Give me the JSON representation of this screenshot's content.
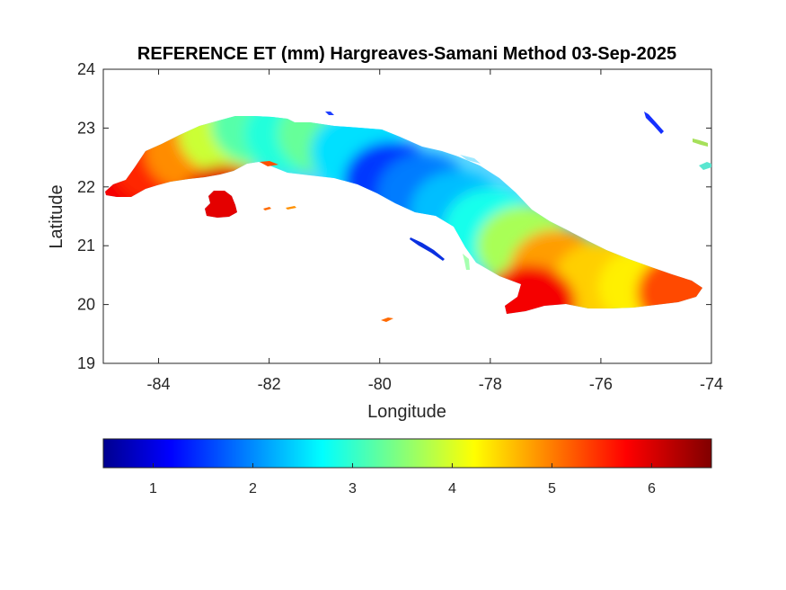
{
  "chart_data": {
    "type": "heatmap",
    "title": "REFERENCE ET (mm) Hargreaves-Samani Method  03-Sep-2025",
    "xlabel": "Longitude",
    "ylabel": "Latitude",
    "xlim": [
      -85,
      -74
    ],
    "ylim": [
      19,
      24
    ],
    "x_ticks": [
      -84,
      -82,
      -80,
      -78,
      -76,
      -74
    ],
    "y_ticks": [
      19,
      20,
      21,
      22,
      23,
      24
    ],
    "colorbar": {
      "colormap": "jet",
      "range": [
        0.5,
        6.6
      ],
      "ticks": [
        1,
        2,
        3,
        4,
        5,
        6
      ],
      "orientation": "horizontal",
      "placement": "below"
    },
    "grid": false,
    "regions": [
      {
        "lon": -84.6,
        "lat": 22.0,
        "value": 5.9
      },
      {
        "lon": -84.0,
        "lat": 22.4,
        "value": 5.6
      },
      {
        "lon": -83.4,
        "lat": 22.6,
        "value": 5.0
      },
      {
        "lon": -82.8,
        "lat": 22.9,
        "value": 4.0
      },
      {
        "lon": -82.2,
        "lat": 23.05,
        "value": 3.3
      },
      {
        "lon": -81.6,
        "lat": 22.9,
        "value": 3.0
      },
      {
        "lon": -81.0,
        "lat": 22.9,
        "value": 3.4
      },
      {
        "lon": -80.4,
        "lat": 22.6,
        "value": 2.6
      },
      {
        "lon": -79.8,
        "lat": 22.1,
        "value": 1.6
      },
      {
        "lon": -79.2,
        "lat": 21.9,
        "value": 2.0
      },
      {
        "lon": -78.6,
        "lat": 21.6,
        "value": 2.4
      },
      {
        "lon": -78.0,
        "lat": 21.3,
        "value": 2.9
      },
      {
        "lon": -77.4,
        "lat": 21.0,
        "value": 3.8
      },
      {
        "lon": -76.8,
        "lat": 20.6,
        "value": 4.9
      },
      {
        "lon": -76.0,
        "lat": 20.4,
        "value": 4.6
      },
      {
        "lon": -75.2,
        "lat": 20.3,
        "value": 4.4
      },
      {
        "lon": -74.5,
        "lat": 20.2,
        "value": 5.4
      },
      {
        "lon": -77.3,
        "lat": 20.0,
        "value": 5.9
      },
      {
        "lon": -82.8,
        "lat": 21.7,
        "value": 6.0
      }
    ]
  }
}
